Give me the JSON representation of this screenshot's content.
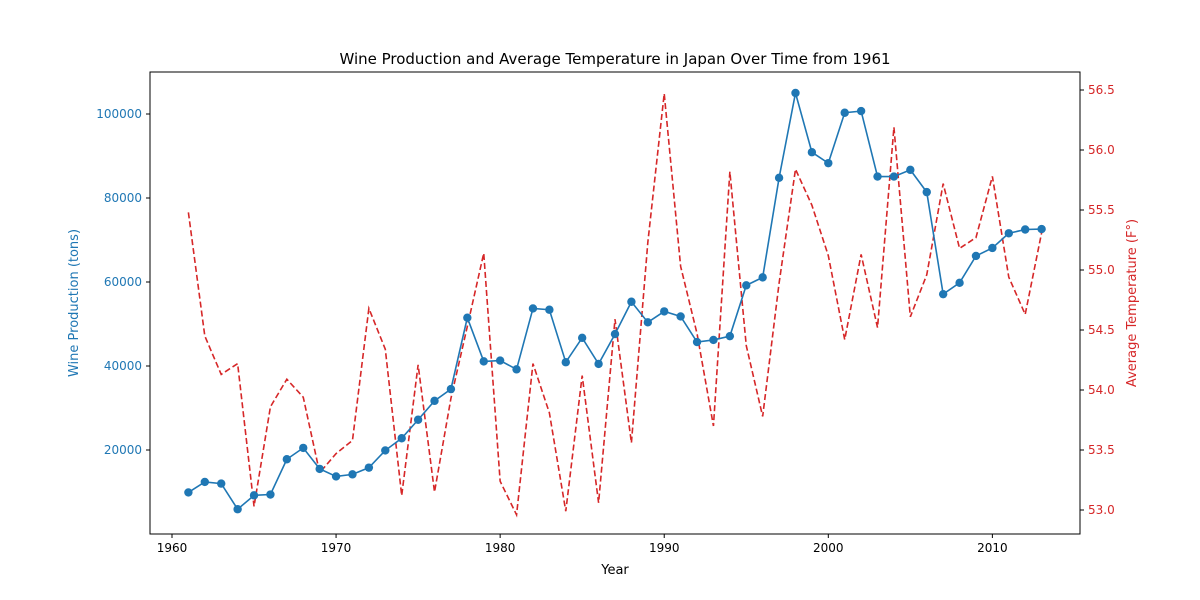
{
  "chart_data": {
    "type": "line",
    "title": "Wine Production and Average Temperature in Japan Over Time from 1961",
    "xlabel": "Year",
    "ylabel_left": "Wine Production (tons)",
    "ylabel_right": "Average Temperature (F°)",
    "xlim": [
      1961,
      2013
    ],
    "ylim_left": [
      0,
      110000
    ],
    "ylim_right": [
      52.8,
      56.65
    ],
    "grid": false,
    "x_ticks": [
      "1960",
      "1970",
      "1980",
      "1990",
      "2000",
      "2010"
    ],
    "y_left_ticks": [
      "20000",
      "40000",
      "60000",
      "80000",
      "100000"
    ],
    "y_right_ticks": [
      "53.0",
      "53.5",
      "54.0",
      "54.5",
      "55.0",
      "55.5",
      "56.0",
      "56.5"
    ],
    "colors": {
      "production": "#1f77b4",
      "temperature": "#d62728"
    },
    "x": [
      1961,
      1962,
      1963,
      1964,
      1965,
      1966,
      1967,
      1968,
      1969,
      1970,
      1971,
      1972,
      1973,
      1974,
      1975,
      1976,
      1977,
      1978,
      1979,
      1980,
      1981,
      1982,
      1983,
      1984,
      1985,
      1986,
      1987,
      1988,
      1989,
      1990,
      1991,
      1992,
      1993,
      1994,
      1995,
      1996,
      1997,
      1998,
      1999,
      2000,
      2001,
      2002,
      2003,
      2004,
      2005,
      2006,
      2007,
      2008,
      2009,
      2010,
      2011,
      2012,
      2013
    ],
    "series": [
      {
        "axis": "left",
        "style": "solid-with-markers",
        "values": [
          9900,
          12400,
          12000,
          5900,
          9200,
          9400,
          17800,
          20500,
          15500,
          13700,
          14200,
          15800,
          19900,
          22800,
          27200,
          31700,
          34500,
          51500,
          41100,
          41300,
          39200,
          53700,
          53400,
          40900,
          46700,
          40500,
          47600,
          55300,
          50400,
          53000,
          51800,
          45700,
          46200,
          47100,
          59200,
          61100,
          84800,
          105000,
          90900,
          88300,
          100300,
          100700,
          85100,
          85100,
          86700,
          81400,
          57100,
          59800,
          66200,
          68100,
          71600,
          72500,
          72600
        ]
      },
      {
        "axis": "right",
        "style": "dashed",
        "values": [
          55.48,
          54.45,
          54.13,
          54.22,
          53.03,
          53.86,
          54.09,
          53.94,
          53.31,
          53.47,
          53.58,
          54.68,
          54.34,
          53.12,
          54.21,
          53.15,
          53.93,
          54.53,
          55.14,
          53.24,
          52.96,
          54.22,
          53.81,
          52.99,
          54.12,
          53.06,
          54.59,
          53.56,
          55.23,
          56.47,
          55.03,
          54.47,
          53.7,
          55.82,
          54.37,
          53.78,
          54.89,
          55.84,
          55.54,
          55.12,
          54.42,
          55.13,
          54.52,
          56.19,
          54.61,
          54.96,
          55.72,
          55.18,
          55.27,
          55.78,
          54.94,
          54.63,
          55.31
        ]
      }
    ]
  }
}
